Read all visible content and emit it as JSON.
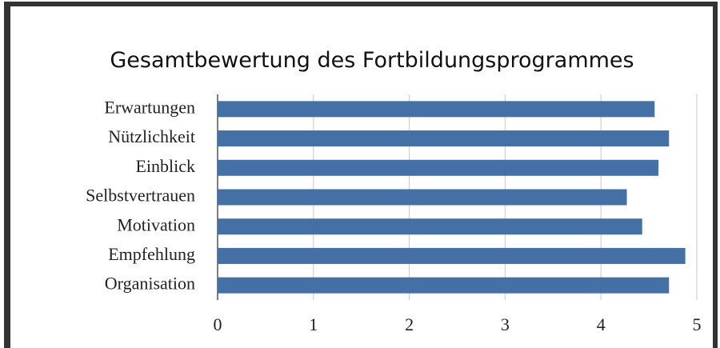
{
  "chart_data": {
    "type": "bar",
    "orientation": "horizontal",
    "title": "Gesamtbewertung des Fortbildungsprogrammes",
    "categories": [
      "Erwartungen",
      "Nützlichkeit",
      "Einblick",
      "Selbstvertrauen",
      "Motivation",
      "Empfehlung",
      "Organisation"
    ],
    "values": [
      4.56,
      4.71,
      4.6,
      4.27,
      4.43,
      4.88,
      4.71
    ],
    "color": "#4470a5",
    "xlim": [
      0,
      5
    ],
    "xticks": [
      0,
      1,
      2,
      3,
      4,
      5
    ],
    "grid": true
  }
}
